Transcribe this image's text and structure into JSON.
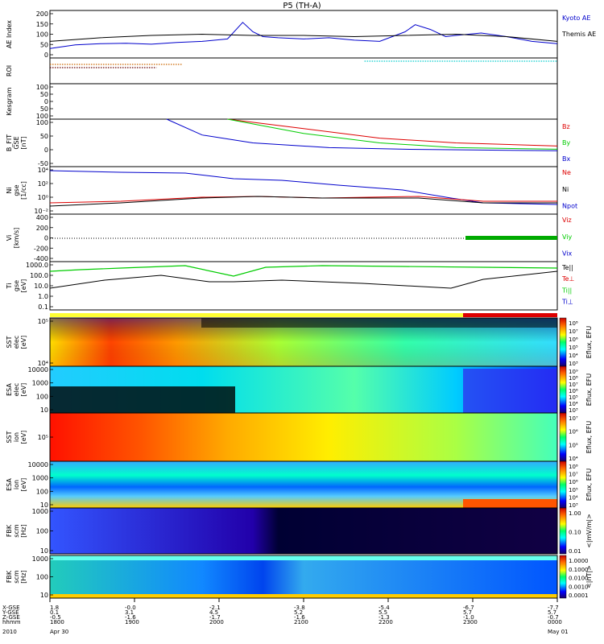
{
  "chart_data": {
    "type": "line",
    "title": "P5 (TH-A)",
    "panels": [
      {
        "id": "ae",
        "ylabel": "AE Index",
        "ylim": [
          0,
          200
        ],
        "yticks": [
          "200",
          "150",
          "100",
          "50",
          "0"
        ],
        "series": [
          {
            "name": "Kyoto AE",
            "color": "#0000cc",
            "x": [
              0,
              0.05,
              0.1,
              0.15,
              0.2,
              0.25,
              0.3,
              0.35,
              0.38,
              0.4,
              0.42,
              0.45,
              0.5,
              0.55,
              0.6,
              0.65,
              0.7,
              0.72,
              0.75,
              0.78,
              0.8,
              0.85,
              0.9,
              0.95,
              1.0
            ],
            "y": [
              40,
              55,
              60,
              62,
              58,
              65,
              70,
              80,
              150,
              110,
              90,
              85,
              80,
              85,
              75,
              70,
              110,
              140,
              120,
              90,
              95,
              105,
              90,
              70,
              60
            ]
          },
          {
            "name": "Themis AE",
            "color": "#000000",
            "x": [
              0,
              0.1,
              0.2,
              0.3,
              0.4,
              0.5,
              0.6,
              0.7,
              0.8,
              0.9,
              1.0
            ],
            "y": [
              70,
              85,
              95,
              100,
              95,
              95,
              90,
              95,
              100,
              90,
              70
            ]
          }
        ]
      },
      {
        "id": "roi",
        "ylabel": "ROI"
      },
      {
        "id": "kesgram",
        "ylabel": "Kesgram",
        "yticks": [
          "100",
          "50",
          "0",
          "50",
          "100"
        ]
      },
      {
        "id": "bfit",
        "ylabel": "B_FIT\nGSE\n[nT]",
        "ylim": [
          -50,
          100
        ],
        "yticks": [
          "100",
          "50",
          "0",
          "-50"
        ],
        "series": [
          {
            "name": "Bz",
            "color": "#dd0000",
            "x": [
              0.35,
              0.5,
              0.65,
              0.8,
              1.0
            ],
            "y": [
              100,
              70,
              40,
              25,
              15
            ]
          },
          {
            "name": "By",
            "color": "#00cc00",
            "x": [
              0.35,
              0.5,
              0.65,
              0.8,
              1.0
            ],
            "y": [
              100,
              55,
              25,
              10,
              5
            ]
          },
          {
            "name": "Bx",
            "color": "#0000cc",
            "x": [
              0.23,
              0.3,
              0.4,
              0.55,
              0.7,
              1.0
            ],
            "y": [
              100,
              50,
              25,
              10,
              5,
              0
            ]
          }
        ]
      },
      {
        "id": "ni",
        "ylabel": "Ni\ngse\n[1/cc]",
        "yticks": [
          "10⁴",
          "10²",
          "10⁰",
          "10⁻²"
        ],
        "legend": [
          "Ne",
          "Ni",
          "Npot"
        ]
      },
      {
        "id": "vi",
        "ylabel": "Vi\n[km/s]",
        "ylim": [
          -400,
          400
        ],
        "yticks": [
          "400",
          "200",
          "0",
          "-200",
          "-400"
        ],
        "legend": [
          "Viz",
          "Viy",
          "Vix"
        ]
      },
      {
        "id": "ti",
        "ylabel": "Ti\ngse\n[eV]",
        "yticks": [
          "1000.0",
          "100.0",
          "10.0",
          "1.0",
          "0.1"
        ],
        "legend": [
          "Te||",
          "Te⊥",
          "Ti||",
          "Ti⊥"
        ]
      },
      {
        "id": "sst_e",
        "ylabel": "SST\nelec\n[eV]",
        "yticks": [
          "10⁵",
          "10⁴"
        ],
        "cbar_label": "Eflux, EFU",
        "cbar_ticks": [
          "10⁸",
          "10⁷",
          "10⁶",
          "10⁵",
          "10⁴",
          "10³"
        ]
      },
      {
        "id": "esa_e",
        "ylabel": "ESA\nelec\n[eV]",
        "yticks": [
          "10000",
          "1000",
          "100",
          "10"
        ],
        "cbar_label": "Eflux, EFU",
        "cbar_ticks": [
          "10⁹",
          "10⁸",
          "10⁷",
          "10⁶",
          "10⁵",
          "10⁴",
          "10³"
        ]
      },
      {
        "id": "sst_i",
        "ylabel": "SST\nion\n[eV]",
        "yticks": [
          "10⁵"
        ],
        "cbar_label": "Eflux, EFU",
        "cbar_ticks": [
          "10⁷",
          "10⁶",
          "10⁵",
          "10⁴"
        ]
      },
      {
        "id": "esa_i",
        "ylabel": "ESA\nion\n[eV]",
        "yticks": [
          "10000",
          "1000",
          "100",
          "10"
        ],
        "cbar_label": "Eflux, EFU",
        "cbar_ticks": [
          "10⁸",
          "10⁷",
          "10⁶",
          "10⁵",
          "10⁴",
          "10³"
        ]
      },
      {
        "id": "fbk_e",
        "ylabel": "FBK\nscm\n[Hz]",
        "yticks": [
          "1000",
          "100",
          "10"
        ],
        "cbar_label": "<|mV/m|>",
        "cbar_ticks": [
          "1.00",
          "0.10",
          "0.01"
        ]
      },
      {
        "id": "fbk_b",
        "ylabel": "FBK\nscm\n[Hz]",
        "yticks": [
          "1000",
          "100",
          "10"
        ],
        "cbar_label": "<|nT|>",
        "cbar_ticks": [
          "1.0000",
          "0.1000",
          "0.0100",
          "0.0010",
          "0.0001"
        ]
      }
    ],
    "ephemeris": {
      "row_labels": [
        "X-GSE",
        "Y-GSE",
        "Z-GSE",
        "hhmm",
        "2010"
      ],
      "columns": [
        {
          "x": "1.8",
          "y": "0.1",
          "z": "-0.5",
          "t": "1800",
          "d": "Apr 30"
        },
        {
          "x": "-0.0",
          "y": "3.1",
          "z": "-1.6",
          "t": "1900",
          "d": ""
        },
        {
          "x": "-2.1",
          "y": "4.5",
          "z": "-1.7",
          "t": "2000",
          "d": ""
        },
        {
          "x": "-3.8",
          "y": "5.2",
          "z": "-1.6",
          "t": "2100",
          "d": ""
        },
        {
          "x": "-5.4",
          "y": "5.5",
          "z": "-1.3",
          "t": "2200",
          "d": ""
        },
        {
          "x": "-6.7",
          "y": "5.7",
          "z": "-1.0",
          "t": "2300",
          "d": ""
        },
        {
          "x": "-7.7",
          "y": "5.7",
          "z": "-0.7",
          "t": "0000",
          "d": "May 01"
        }
      ]
    },
    "colors": {
      "background": "#ffffff",
      "axis": "#000000",
      "flag_yellow": "#ffff33",
      "flag_red": "#dd0000"
    }
  }
}
